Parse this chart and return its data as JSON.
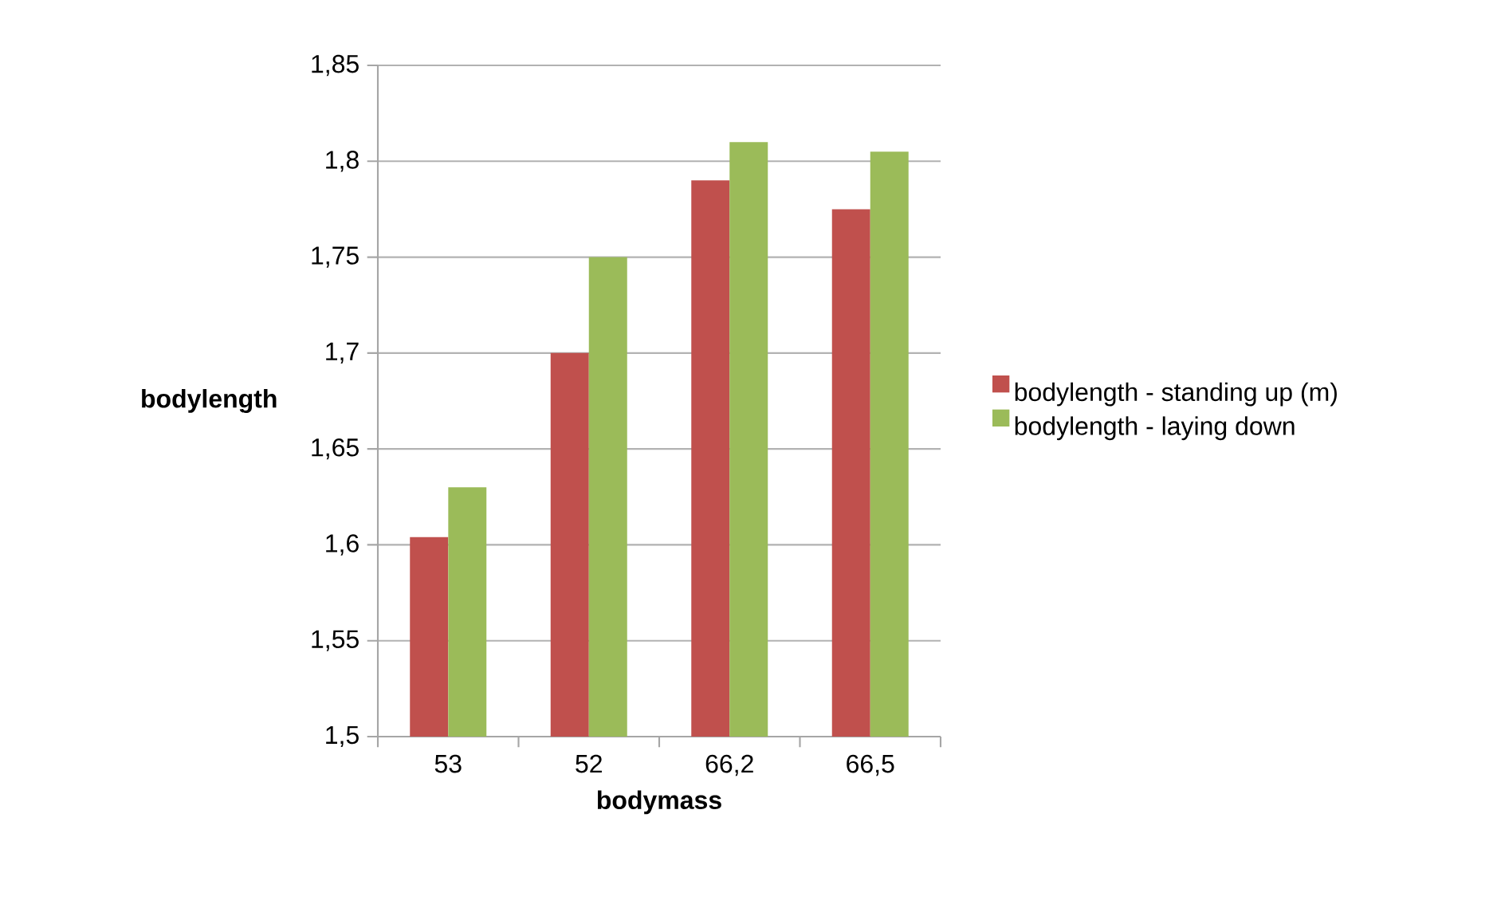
{
  "chart_data": {
    "type": "bar",
    "xlabel": "bodymass",
    "ylabel": "bodylength",
    "categories": [
      "53",
      "52",
      "66,2",
      "66,5"
    ],
    "series": [
      {
        "name": "bodylength - standing up (m)",
        "color": "#c0504d",
        "values": [
          1.604,
          1.7,
          1.79,
          1.775
        ]
      },
      {
        "name": "bodylength - laying down",
        "color": "#9bbb59",
        "values": [
          1.63,
          1.75,
          1.81,
          1.805
        ]
      }
    ],
    "ylim": [
      1.5,
      1.85
    ],
    "yticks": [
      {
        "value": 1.5,
        "label": "1,5"
      },
      {
        "value": 1.55,
        "label": "1,55"
      },
      {
        "value": 1.6,
        "label": "1,6"
      },
      {
        "value": 1.65,
        "label": "1,65"
      },
      {
        "value": 1.7,
        "label": "1,7"
      },
      {
        "value": 1.75,
        "label": "1,75"
      },
      {
        "value": 1.8,
        "label": "1,8"
      },
      {
        "value": 1.85,
        "label": "1,85"
      }
    ],
    "grid": "y",
    "legend": "right"
  }
}
